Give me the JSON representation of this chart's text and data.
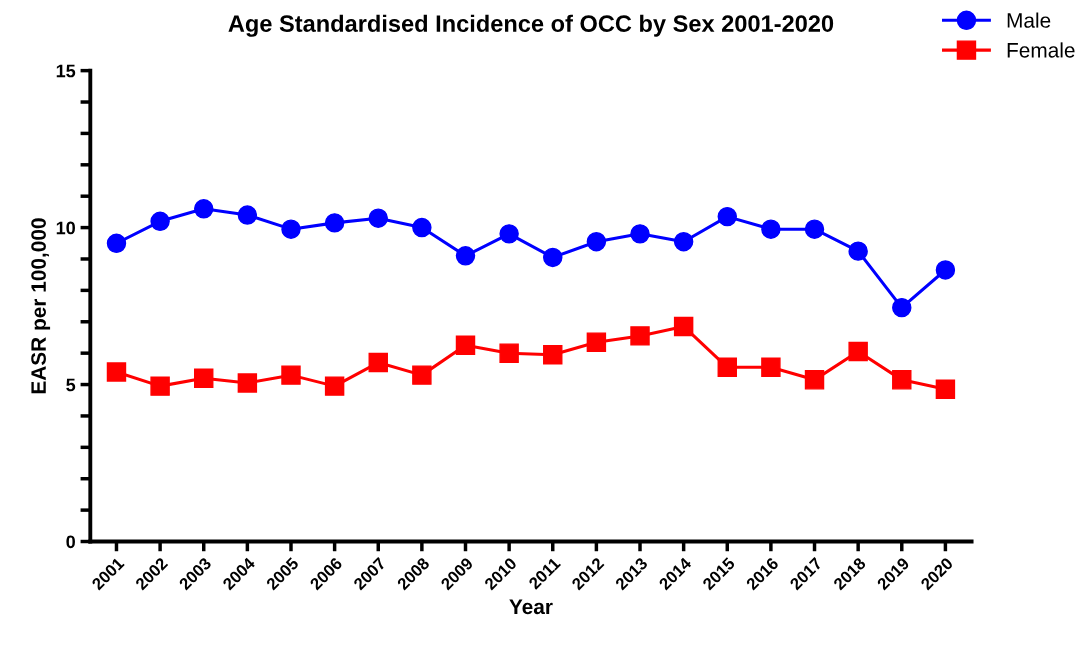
{
  "chart_data": {
    "type": "line",
    "title": "Age Standardised Incidence of OCC by Sex 2001-2020",
    "xlabel": "Year",
    "ylabel": "EASR per 100,000",
    "categories": [
      "2001",
      "2002",
      "2003",
      "2004",
      "2005",
      "2006",
      "2007",
      "2008",
      "2009",
      "2010",
      "2011",
      "2012",
      "2013",
      "2014",
      "2015",
      "2016",
      "2017",
      "2018",
      "2019",
      "2020"
    ],
    "series": [
      {
        "name": "Male",
        "color": "#0000ff",
        "marker": "circle",
        "values": [
          9.5,
          10.2,
          10.6,
          10.4,
          9.95,
          10.15,
          10.3,
          10.0,
          9.1,
          9.8,
          9.05,
          9.55,
          9.8,
          9.55,
          10.35,
          9.95,
          9.95,
          9.25,
          7.45,
          8.65
        ]
      },
      {
        "name": "Female",
        "color": "#ff0000",
        "marker": "square",
        "values": [
          5.4,
          4.95,
          5.2,
          5.05,
          5.3,
          4.95,
          5.7,
          5.3,
          6.25,
          6.0,
          5.95,
          6.35,
          6.55,
          6.85,
          5.55,
          5.55,
          5.15,
          6.05,
          5.15,
          4.85
        ]
      }
    ],
    "ylim": [
      0,
      15
    ],
    "yticks": [
      0,
      {
        "value": 1,
        "label": null
      },
      {
        "value": 2,
        "label": null
      },
      {
        "value": 3,
        "label": null
      },
      {
        "value": 4,
        "label": null
      },
      5,
      {
        "value": 6,
        "label": null
      },
      {
        "value": 7,
        "label": null
      },
      {
        "value": 8,
        "label": null
      },
      {
        "value": 9,
        "label": null
      },
      10,
      {
        "value": 11,
        "label": null
      },
      {
        "value": 12,
        "label": null
      },
      {
        "value": 13,
        "label": null
      },
      {
        "value": 14,
        "label": null
      },
      15
    ],
    "grid": false,
    "legend": "top right",
    "line_style": "solid"
  }
}
